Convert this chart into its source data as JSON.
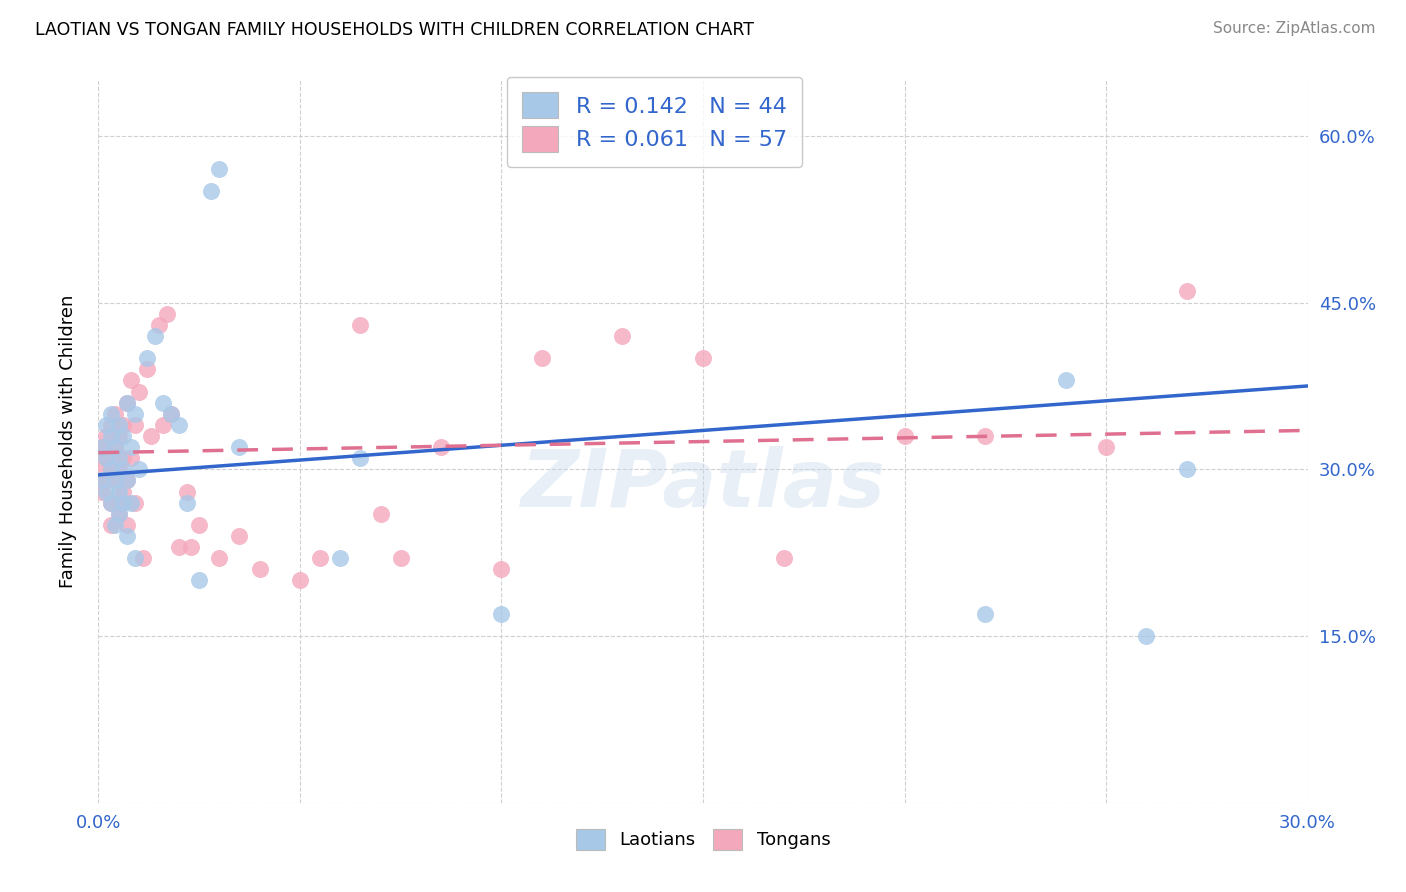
{
  "title": "LAOTIAN VS TONGAN FAMILY HOUSEHOLDS WITH CHILDREN CORRELATION CHART",
  "source": "Source: ZipAtlas.com",
  "ylabel": "Family Households with Children",
  "blue_R": 0.142,
  "blue_N": 44,
  "pink_R": 0.061,
  "pink_N": 57,
  "blue_color": "#a8c8e8",
  "pink_color": "#f4a8bc",
  "blue_line_color": "#3366cc",
  "pink_line_color": "#e07090",
  "legend_label_blue": "Laotians",
  "legend_label_pink": "Tongans",
  "watermark": "ZIPatlas",
  "xlim": [
    0.0,
    0.3
  ],
  "ylim": [
    0.0,
    0.65
  ],
  "xtick_positions": [
    0.0,
    0.05,
    0.1,
    0.15,
    0.2,
    0.25,
    0.3
  ],
  "xtick_labels": [
    "0.0%",
    "",
    "",
    "",
    "",
    "",
    "30.0%"
  ],
  "ytick_positions": [
    0.0,
    0.15,
    0.3,
    0.45,
    0.6
  ],
  "ytick_labels_right": [
    "",
    "15.0%",
    "30.0%",
    "45.0%",
    "60.0%"
  ],
  "blue_trendline": [
    0.0,
    0.3,
    0.295,
    0.375
  ],
  "pink_trendline": [
    0.0,
    0.3,
    0.315,
    0.335
  ],
  "blue_x": [
    0.001,
    0.001,
    0.002,
    0.002,
    0.002,
    0.003,
    0.003,
    0.003,
    0.003,
    0.004,
    0.004,
    0.004,
    0.005,
    0.005,
    0.005,
    0.005,
    0.006,
    0.006,
    0.006,
    0.007,
    0.007,
    0.007,
    0.008,
    0.008,
    0.009,
    0.009,
    0.01,
    0.012,
    0.014,
    0.016,
    0.018,
    0.02,
    0.022,
    0.025,
    0.028,
    0.03,
    0.035,
    0.06,
    0.065,
    0.1,
    0.22,
    0.24,
    0.26,
    0.27
  ],
  "blue_y": [
    0.32,
    0.29,
    0.31,
    0.28,
    0.34,
    0.3,
    0.27,
    0.33,
    0.35,
    0.29,
    0.32,
    0.25,
    0.31,
    0.28,
    0.34,
    0.26,
    0.3,
    0.33,
    0.27,
    0.36,
    0.29,
    0.24,
    0.32,
    0.27,
    0.35,
    0.22,
    0.3,
    0.4,
    0.42,
    0.36,
    0.35,
    0.34,
    0.27,
    0.2,
    0.55,
    0.57,
    0.32,
    0.22,
    0.31,
    0.17,
    0.17,
    0.38,
    0.15,
    0.3
  ],
  "pink_x": [
    0.001,
    0.001,
    0.001,
    0.002,
    0.002,
    0.002,
    0.003,
    0.003,
    0.003,
    0.003,
    0.004,
    0.004,
    0.004,
    0.005,
    0.005,
    0.005,
    0.005,
    0.006,
    0.006,
    0.006,
    0.007,
    0.007,
    0.007,
    0.008,
    0.008,
    0.009,
    0.009,
    0.01,
    0.011,
    0.012,
    0.013,
    0.015,
    0.016,
    0.017,
    0.018,
    0.02,
    0.022,
    0.023,
    0.025,
    0.03,
    0.035,
    0.04,
    0.05,
    0.055,
    0.065,
    0.07,
    0.075,
    0.085,
    0.1,
    0.11,
    0.13,
    0.15,
    0.17,
    0.2,
    0.22,
    0.25,
    0.27
  ],
  "pink_y": [
    0.32,
    0.3,
    0.28,
    0.31,
    0.29,
    0.33,
    0.3,
    0.27,
    0.34,
    0.25,
    0.32,
    0.29,
    0.35,
    0.3,
    0.27,
    0.33,
    0.26,
    0.34,
    0.31,
    0.28,
    0.36,
    0.29,
    0.25,
    0.38,
    0.31,
    0.34,
    0.27,
    0.37,
    0.22,
    0.39,
    0.33,
    0.43,
    0.34,
    0.44,
    0.35,
    0.23,
    0.28,
    0.23,
    0.25,
    0.22,
    0.24,
    0.21,
    0.2,
    0.22,
    0.43,
    0.26,
    0.22,
    0.32,
    0.21,
    0.4,
    0.42,
    0.4,
    0.22,
    0.33,
    0.33,
    0.32,
    0.46
  ]
}
